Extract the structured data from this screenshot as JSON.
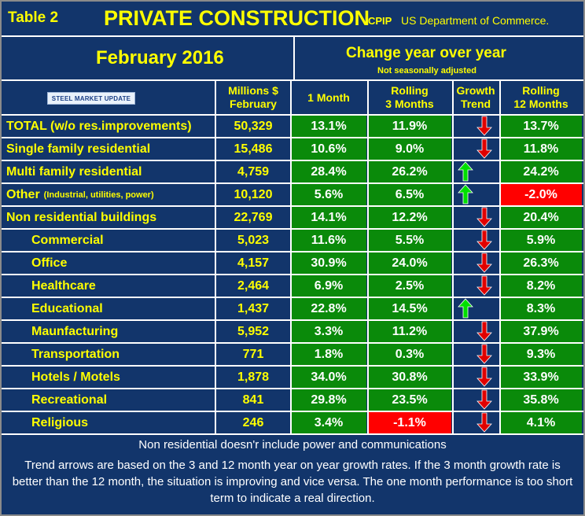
{
  "title": {
    "table_no": "Table 2",
    "main": "PRIVATE CONSTRUCTION",
    "code": "CPIP",
    "source": "US Department of Commerce."
  },
  "period": "February 2016",
  "change_header": "Change year over year",
  "not_seasonally": "Not seasonally adjusted",
  "logo_text": "STEEL MARKET UPDATE",
  "columns": {
    "millions": "Millions $",
    "millions2": "February",
    "one_month": "1 Month",
    "rolling3a": "Rolling",
    "rolling3b": "3 Months",
    "trend_a": "Growth",
    "trend_b": "Trend",
    "rolling12a": "Rolling",
    "rolling12b": "12 Months"
  },
  "rows": [
    {
      "label": "TOTAL (w/o res.improvements)",
      "small": "",
      "indent": false,
      "millions": "50,329",
      "m1": "13.1%",
      "m1_color": "green",
      "r3": "11.9%",
      "r3_color": "green",
      "trend": "down",
      "r12": "13.7%",
      "r12_color": "green"
    },
    {
      "label": "Single family residential",
      "small": "",
      "indent": false,
      "millions": "15,486",
      "m1": "10.6%",
      "m1_color": "green",
      "r3": "9.0%",
      "r3_color": "green",
      "trend": "down",
      "r12": "11.8%",
      "r12_color": "green"
    },
    {
      "label": "Multi family residential",
      "small": "",
      "indent": false,
      "millions": "4,759",
      "m1": "28.4%",
      "m1_color": "green",
      "r3": "26.2%",
      "r3_color": "green",
      "trend": "up",
      "r12": "24.2%",
      "r12_color": "green"
    },
    {
      "label": "Other",
      "small": "(Industrial, utilities, power)",
      "indent": false,
      "millions": "10,120",
      "m1": "5.6%",
      "m1_color": "green",
      "r3": "6.5%",
      "r3_color": "green",
      "trend": "up",
      "r12": "-2.0%",
      "r12_color": "red"
    },
    {
      "label": "Non residential buildings",
      "small": "",
      "indent": false,
      "millions": "22,769",
      "m1": "14.1%",
      "m1_color": "green",
      "r3": "12.2%",
      "r3_color": "green",
      "trend": "down",
      "r12": "20.4%",
      "r12_color": "green"
    },
    {
      "label": "Commercial",
      "small": "",
      "indent": true,
      "millions": "5,023",
      "m1": "11.6%",
      "m1_color": "green",
      "r3": "5.5%",
      "r3_color": "green",
      "trend": "down",
      "r12": "5.9%",
      "r12_color": "green"
    },
    {
      "label": "Office",
      "small": "",
      "indent": true,
      "millions": "4,157",
      "m1": "30.9%",
      "m1_color": "green",
      "r3": "24.0%",
      "r3_color": "green",
      "trend": "down",
      "r12": "26.3%",
      "r12_color": "green"
    },
    {
      "label": "Healthcare",
      "small": "",
      "indent": true,
      "millions": "2,464",
      "m1": "6.9%",
      "m1_color": "green",
      "r3": "2.5%",
      "r3_color": "green",
      "trend": "down",
      "r12": "8.2%",
      "r12_color": "green"
    },
    {
      "label": "Educational",
      "small": "",
      "indent": true,
      "millions": "1,437",
      "m1": "22.8%",
      "m1_color": "green",
      "r3": "14.5%",
      "r3_color": "green",
      "trend": "up",
      "r12": "8.3%",
      "r12_color": "green"
    },
    {
      "label": "Maunfacturing",
      "small": "",
      "indent": true,
      "millions": "5,952",
      "m1": "3.3%",
      "m1_color": "green",
      "r3": "11.2%",
      "r3_color": "green",
      "trend": "down",
      "r12": "37.9%",
      "r12_color": "green"
    },
    {
      "label": "Transportation",
      "small": "",
      "indent": true,
      "millions": "771",
      "m1": "1.8%",
      "m1_color": "green",
      "r3": "0.3%",
      "r3_color": "green",
      "trend": "down",
      "r12": "9.3%",
      "r12_color": "green"
    },
    {
      "label": "Hotels / Motels",
      "small": "",
      "indent": true,
      "millions": "1,878",
      "m1": "34.0%",
      "m1_color": "green",
      "r3": "30.8%",
      "r3_color": "green",
      "trend": "down",
      "r12": "33.9%",
      "r12_color": "green"
    },
    {
      "label": "Recreational",
      "small": "",
      "indent": true,
      "millions": "841",
      "m1": "29.8%",
      "m1_color": "green",
      "r3": "23.5%",
      "r3_color": "green",
      "trend": "down",
      "r12": "35.8%",
      "r12_color": "green"
    },
    {
      "label": "Religious",
      "small": "",
      "indent": true,
      "millions": "246",
      "m1": "3.4%",
      "m1_color": "green",
      "r3": "-1.1%",
      "r3_color": "red",
      "trend": "down",
      "r12": "4.1%",
      "r12_color": "green"
    }
  ],
  "footnote1": "Non residential doesn'r include power and communications",
  "footnote2": "Trend arrows are based on the 3 and 12 month year on year growth rates. If the 3 month growth rate is better than the 12 month, the situation is improving and vice versa. The one month performance is too short term to indicate a real direction.",
  "colors": {
    "navy": "#12356b",
    "green": "#0a8a0a",
    "red": "#ff0000",
    "yellow": "#ffff00",
    "arrow_up": "#00e000",
    "arrow_down": "#e00000"
  }
}
